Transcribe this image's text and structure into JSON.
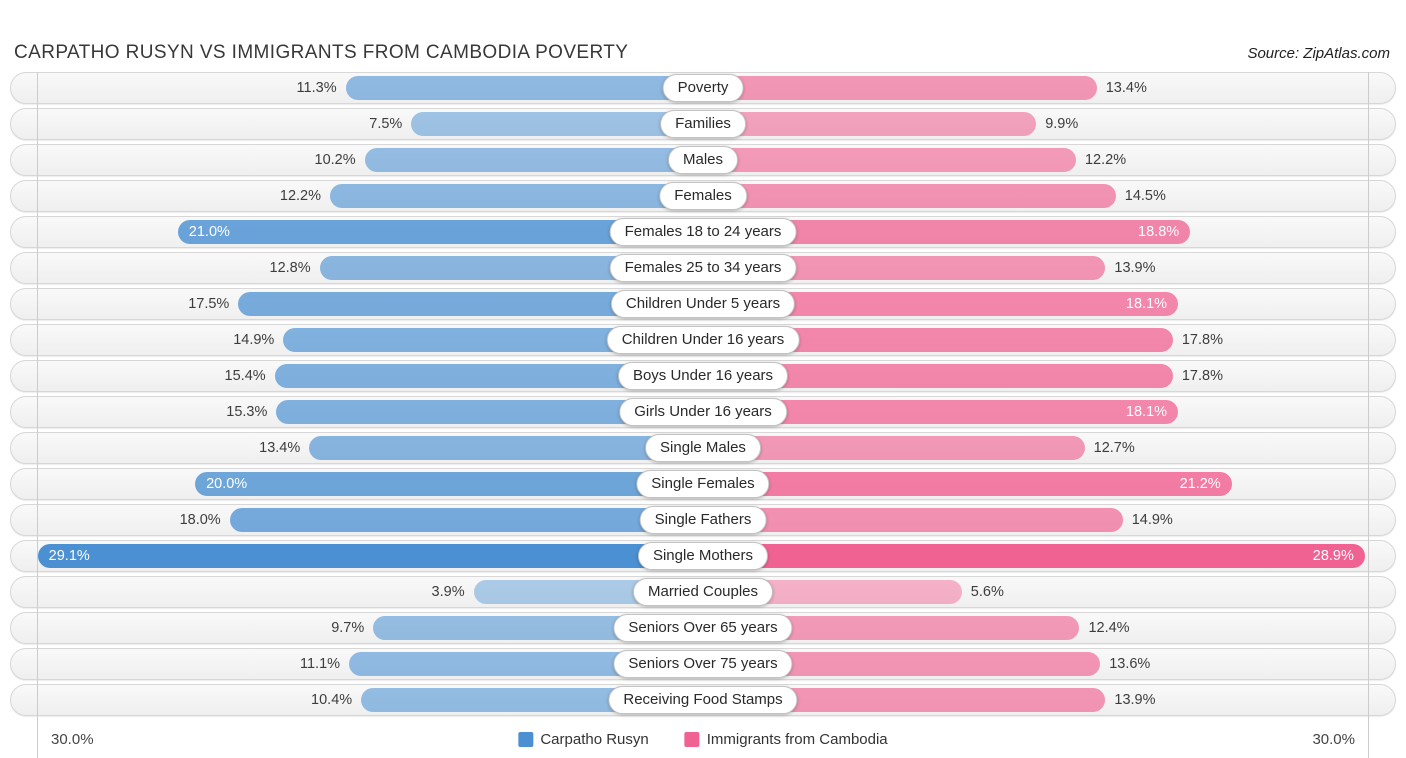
{
  "header": {
    "title": "CARPATHO RUSYN VS IMMIGRANTS FROM CAMBODIA POVERTY",
    "source": "Source: ZipAtlas.com"
  },
  "chart_data": {
    "type": "bar",
    "variant": "diverging-horizontal",
    "title": "CARPATHO RUSYN VS IMMIGRANTS FROM CAMBODIA POVERTY",
    "categories": [
      "Poverty",
      "Families",
      "Males",
      "Females",
      "Females 18 to 24 years",
      "Females 25 to 34 years",
      "Children Under 5 years",
      "Children Under 16 years",
      "Boys Under 16 years",
      "Girls Under 16 years",
      "Single Males",
      "Single Females",
      "Single Fathers",
      "Single Mothers",
      "Married Couples",
      "Seniors Over 65 years",
      "Seniors Over 75 years",
      "Receiving Food Stamps"
    ],
    "series": [
      {
        "name": "Carpatho Rusyn",
        "color": "#4a90d2",
        "values": [
          11.3,
          7.5,
          10.2,
          12.2,
          21.0,
          12.8,
          17.5,
          14.9,
          15.4,
          15.3,
          13.4,
          20.0,
          18.0,
          29.1,
          3.9,
          9.7,
          11.1,
          10.4
        ]
      },
      {
        "name": "Immigrants from Cambodia",
        "color": "#f06292",
        "values": [
          13.4,
          9.9,
          12.2,
          14.5,
          18.8,
          13.9,
          18.1,
          17.8,
          17.8,
          18.1,
          12.7,
          21.2,
          14.9,
          28.9,
          5.6,
          12.4,
          13.6,
          13.9
        ]
      }
    ],
    "value_suffix": "%",
    "axis": {
      "xlim": [
        0,
        30
      ],
      "left_max_label": "30.0%",
      "right_max_label": "30.0%",
      "grid": true
    },
    "legend_position": "bottom-center"
  }
}
